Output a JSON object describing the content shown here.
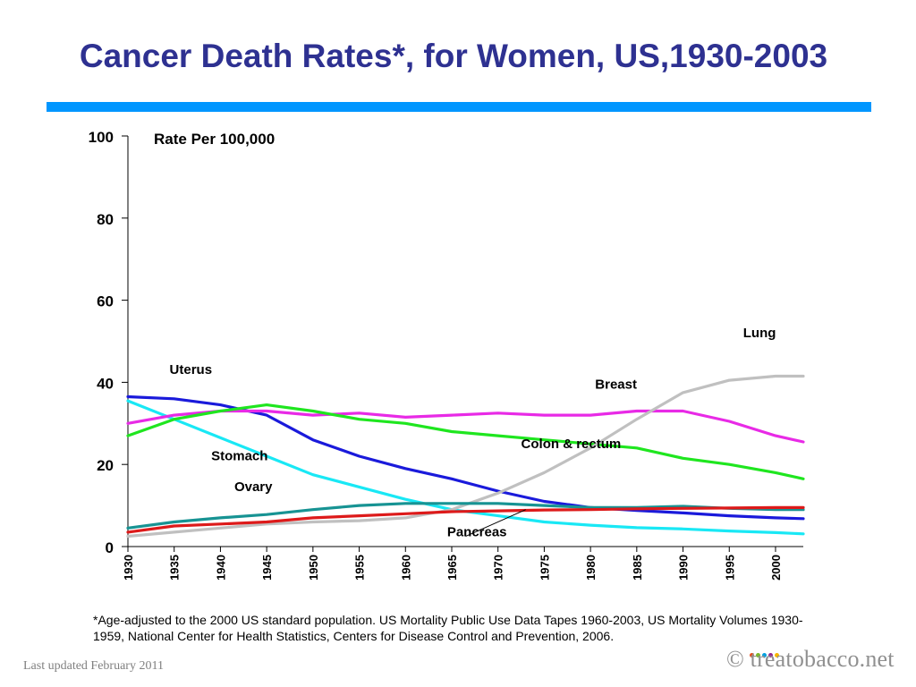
{
  "page": {
    "title": "Cancer Death Rates*, for Women, US,1930-2003",
    "footnote": "*Age-adjusted to the 2000 US standard population. US Mortality Public Use Data Tapes 1960-2003, US Mortality Volumes 1930-1959, National Center for Health Statistics, Centers for Disease Control and Prevention, 2006.",
    "last_updated": "Last updated February 2011",
    "brand": "© treatobacco.net",
    "brand_dot_colors": [
      "#e84e1b",
      "#7ab929",
      "#00a0e0",
      "#93278f",
      "#f7b500"
    ]
  },
  "chart_data": {
    "type": "line",
    "ylabel": "Rate Per 100,000",
    "ylim": [
      0,
      100
    ],
    "yticks": [
      0,
      20,
      40,
      60,
      80,
      100
    ],
    "xlim": [
      1930,
      2003
    ],
    "xticks": [
      1930,
      1935,
      1940,
      1945,
      1950,
      1955,
      1960,
      1965,
      1970,
      1975,
      1980,
      1985,
      1990,
      1995,
      2000
    ],
    "grid": false,
    "legend": "direct labels",
    "x": [
      1930,
      1935,
      1940,
      1945,
      1950,
      1955,
      1960,
      1965,
      1970,
      1975,
      1980,
      1985,
      1990,
      1995,
      2000,
      2003
    ],
    "series": [
      {
        "name": "Uterus",
        "color": "#1a1adb",
        "values": [
          36.5,
          36.0,
          34.5,
          32.0,
          26.0,
          22.0,
          19.0,
          16.5,
          13.5,
          11.0,
          9.5,
          8.8,
          8.2,
          7.5,
          7.0,
          6.8
        ]
      },
      {
        "name": "Stomach",
        "color": "#19e8f5",
        "values": [
          35.5,
          31.0,
          26.5,
          22.0,
          17.5,
          14.5,
          11.5,
          9.0,
          7.5,
          6.0,
          5.2,
          4.6,
          4.3,
          3.8,
          3.4,
          3.1
        ]
      },
      {
        "name": "Breast",
        "color": "#e82ae6",
        "values": [
          30.0,
          32.0,
          33.0,
          33.0,
          32.0,
          32.5,
          31.5,
          32.0,
          32.5,
          32.0,
          32.0,
          33.0,
          33.0,
          30.5,
          27.0,
          25.5
        ]
      },
      {
        "name": "Colon & rectum",
        "color": "#1fe61f",
        "values": [
          27.0,
          31.0,
          33.0,
          34.5,
          33.0,
          31.0,
          30.0,
          28.0,
          27.0,
          26.0,
          25.0,
          24.0,
          21.5,
          20.0,
          18.0,
          16.5
        ]
      },
      {
        "name": "Lung",
        "color": "#c0c0c0",
        "values": [
          2.5,
          3.5,
          4.5,
          5.5,
          6.0,
          6.3,
          7.0,
          9.0,
          13.0,
          18.0,
          24.0,
          31.0,
          37.5,
          40.5,
          41.5,
          41.5
        ]
      },
      {
        "name": "Ovary",
        "color": "#179393",
        "values": [
          4.5,
          6.0,
          7.0,
          7.8,
          9.0,
          10.0,
          10.5,
          10.5,
          10.5,
          10.0,
          9.5,
          9.5,
          9.8,
          9.3,
          9.0,
          9.0
        ]
      },
      {
        "name": "Pancreas",
        "color": "#dd1a1a",
        "values": [
          3.5,
          5.0,
          5.5,
          6.0,
          7.0,
          7.5,
          8.0,
          8.5,
          8.7,
          8.9,
          9.0,
          9.2,
          9.3,
          9.4,
          9.5,
          9.5
        ]
      }
    ],
    "labels": [
      {
        "series": "Uterus",
        "text": "Uterus",
        "x": 1934.5,
        "y": 42
      },
      {
        "series": "Stomach",
        "text": "Stomach",
        "x": 1939.0,
        "y": 21
      },
      {
        "series": "Breast",
        "text": "Breast",
        "x": 1980.5,
        "y": 38.5
      },
      {
        "series": "Colon & rectum",
        "text": "Colon & rectum",
        "x": 1972.5,
        "y": 24
      },
      {
        "series": "Lung",
        "text": "Lung",
        "x": 1996.5,
        "y": 51
      },
      {
        "series": "Ovary",
        "text": "Ovary",
        "x": 1941.5,
        "y": 13.5
      },
      {
        "series": "Pancreas",
        "text": "Pancreas",
        "x": 1964.5,
        "y": 2.5
      }
    ],
    "pancreas_pointer": {
      "from": [
        1966.5,
        2.5
      ],
      "to": [
        1973.0,
        9.0
      ]
    }
  }
}
